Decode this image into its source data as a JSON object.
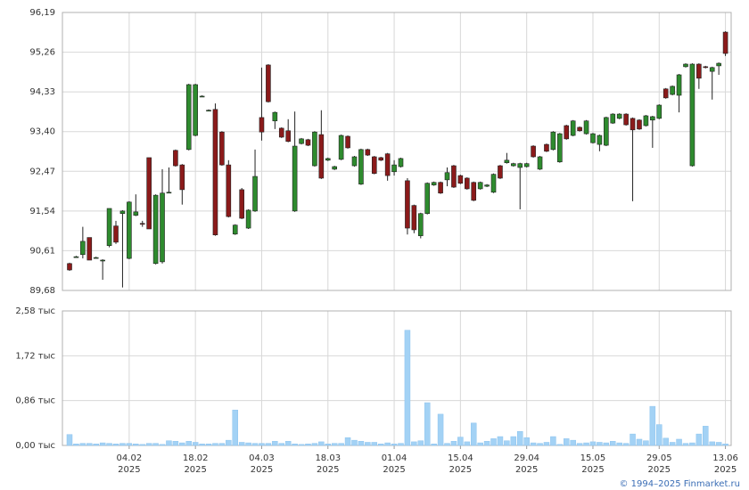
{
  "chart_data": {
    "type": "candlestick",
    "source": "© 1994–2025 Finmarket.ru",
    "up_color": "#2e8b2e",
    "down_color": "#8b1a1a",
    "volume_color": "#a3d2f5",
    "x": [
      "2025-01-22",
      "2025-01-23",
      "2025-01-24",
      "2025-01-27",
      "2025-01-28",
      "2025-01-29",
      "2025-01-30",
      "2025-01-31",
      "2025-02-03",
      "2025-02-04",
      "2025-02-05",
      "2025-02-06",
      "2025-02-07",
      "2025-02-10",
      "2025-02-11",
      "2025-02-12",
      "2025-02-13",
      "2025-02-14",
      "2025-02-17",
      "2025-02-18",
      "2025-02-19",
      "2025-02-20",
      "2025-02-21",
      "2025-02-24",
      "2025-02-25",
      "2025-02-26",
      "2025-02-27",
      "2025-02-28",
      "2025-03-03",
      "2025-03-04",
      "2025-03-05",
      "2025-03-06",
      "2025-03-07",
      "2025-03-10",
      "2025-03-11",
      "2025-03-12",
      "2025-03-13",
      "2025-03-14",
      "2025-03-17",
      "2025-03-18",
      "2025-03-19",
      "2025-03-20",
      "2025-03-21",
      "2025-03-24",
      "2025-03-25",
      "2025-03-26",
      "2025-03-27",
      "2025-03-28",
      "2025-03-31",
      "2025-04-01",
      "2025-04-02",
      "2025-04-03",
      "2025-04-04",
      "2025-04-07",
      "2025-04-08",
      "2025-04-09",
      "2025-04-10",
      "2025-04-11",
      "2025-04-14",
      "2025-04-15",
      "2025-04-16",
      "2025-04-17",
      "2025-04-18",
      "2025-04-21",
      "2025-04-22",
      "2025-04-23",
      "2025-04-24",
      "2025-04-25",
      "2025-04-28",
      "2025-04-29",
      "2025-04-30",
      "2025-05-02",
      "2025-05-05",
      "2025-05-06",
      "2025-05-07",
      "2025-05-08",
      "2025-05-12",
      "2025-05-13",
      "2025-05-14",
      "2025-05-15",
      "2025-05-16",
      "2025-05-19",
      "2025-05-20",
      "2025-05-21",
      "2025-05-22",
      "2025-05-23",
      "2025-05-26",
      "2025-05-27",
      "2025-05-28",
      "2025-05-29",
      "2025-05-30",
      "2025-06-02",
      "2025-06-03",
      "2025-06-04",
      "2025-06-05",
      "2025-06-06",
      "2025-06-09",
      "2025-06-10",
      "2025-06-11",
      "2025-06-13"
    ],
    "open": [
      90.31,
      90.47,
      90.52,
      90.92,
      90.45,
      90.39,
      90.73,
      91.19,
      91.48,
      90.43,
      91.44,
      91.25,
      92.79,
      90.31,
      90.35,
      91.98,
      92.96,
      92.62,
      92.98,
      93.31,
      94.23,
      93.9,
      93.92,
      93.39,
      92.62,
      91.0,
      92.04,
      91.14,
      91.54,
      93.73,
      94.96,
      93.65,
      93.48,
      93.42,
      91.54,
      93.12,
      93.21,
      92.6,
      93.33,
      92.73,
      92.52,
      92.75,
      93.29,
      92.6,
      92.17,
      92.98,
      92.81,
      92.79,
      92.88,
      92.46,
      92.58,
      92.25,
      91.67,
      90.96,
      91.48,
      92.15,
      92.21,
      92.27,
      92.6,
      92.37,
      92.31,
      92.21,
      92.06,
      92.12,
      91.98,
      92.6,
      92.67,
      92.6,
      92.56,
      92.58,
      93.06,
      92.52,
      93.1,
      92.98,
      92.69,
      93.54,
      93.31,
      93.5,
      93.35,
      93.14,
      93.1,
      93.08,
      93.6,
      93.71,
      93.81,
      93.71,
      93.67,
      93.54,
      93.67,
      93.71,
      94.4,
      94.27,
      94.25,
      94.92,
      92.6,
      94.98,
      94.92,
      94.81,
      94.94,
      95.73
    ],
    "high": [
      90.33,
      90.49,
      91.17,
      90.92,
      90.47,
      90.41,
      91.6,
      91.31,
      91.56,
      91.77,
      91.93,
      91.31,
      92.79,
      91.93,
      92.52,
      92.56,
      92.98,
      92.64,
      94.52,
      94.52,
      94.25,
      93.92,
      94.06,
      93.41,
      92.73,
      91.23,
      92.08,
      91.58,
      92.98,
      94.9,
      94.98,
      93.87,
      93.5,
      93.69,
      93.87,
      93.25,
      93.23,
      93.41,
      93.9,
      92.79,
      92.6,
      93.33,
      93.31,
      92.83,
      93.0,
      93.0,
      92.83,
      92.81,
      92.9,
      92.73,
      92.79,
      92.31,
      91.69,
      91.5,
      92.21,
      92.23,
      92.23,
      92.56,
      92.62,
      92.39,
      92.33,
      92.23,
      92.23,
      92.17,
      92.42,
      92.62,
      92.9,
      92.67,
      92.67,
      92.67,
      93.08,
      92.83,
      93.12,
      93.41,
      93.37,
      93.56,
      93.67,
      93.52,
      93.67,
      93.37,
      93.33,
      93.75,
      93.83,
      93.83,
      93.83,
      93.73,
      93.69,
      93.79,
      93.77,
      94.04,
      94.42,
      94.48,
      94.75,
      95.0,
      95.0,
      95.0,
      94.94,
      94.92,
      95.02,
      95.75
    ],
    "low": [
      90.14,
      90.45,
      90.43,
      90.39,
      90.43,
      89.93,
      90.69,
      90.77,
      89.75,
      90.41,
      91.42,
      91.17,
      91.12,
      90.29,
      90.31,
      91.96,
      92.58,
      91.69,
      92.96,
      93.29,
      94.21,
      93.88,
      90.96,
      92.6,
      91.39,
      90.98,
      91.35,
      91.12,
      91.52,
      93.19,
      94.08,
      93.46,
      93.25,
      93.15,
      91.52,
      93.1,
      93.06,
      92.58,
      92.29,
      92.71,
      92.5,
      92.73,
      93.0,
      92.58,
      92.15,
      92.83,
      92.4,
      92.71,
      92.25,
      92.37,
      92.56,
      90.99,
      91.02,
      90.9,
      91.46,
      92.13,
      91.94,
      92.12,
      92.08,
      92.17,
      92.04,
      91.77,
      92.04,
      92.1,
      91.96,
      92.29,
      92.65,
      92.58,
      91.58,
      92.56,
      92.79,
      92.5,
      92.92,
      92.96,
      92.67,
      93.21,
      93.29,
      93.4,
      93.33,
      93.12,
      92.94,
      93.06,
      93.58,
      93.69,
      93.54,
      91.77,
      93.44,
      93.52,
      93.02,
      93.69,
      94.17,
      94.25,
      93.85,
      94.9,
      92.58,
      94.4,
      94.88,
      94.15,
      94.73,
      95.17
    ],
    "close": [
      90.16,
      90.47,
      90.83,
      90.39,
      90.45,
      90.39,
      91.6,
      90.81,
      91.54,
      91.75,
      91.52,
      91.23,
      91.12,
      91.91,
      91.96,
      91.98,
      92.6,
      92.04,
      94.5,
      94.5,
      94.23,
      93.9,
      90.98,
      92.62,
      91.41,
      91.21,
      91.37,
      91.56,
      92.35,
      93.39,
      94.1,
      93.85,
      93.27,
      93.17,
      93.06,
      93.23,
      93.08,
      93.39,
      92.31,
      92.77,
      92.58,
      93.31,
      93.02,
      92.81,
      92.98,
      92.85,
      92.42,
      92.73,
      92.37,
      92.62,
      92.77,
      91.14,
      91.1,
      91.48,
      92.19,
      92.21,
      91.96,
      92.44,
      92.1,
      92.19,
      92.06,
      91.79,
      92.21,
      92.15,
      92.4,
      92.31,
      92.73,
      92.65,
      92.65,
      92.65,
      92.81,
      92.81,
      92.94,
      93.39,
      93.35,
      93.23,
      93.65,
      93.42,
      93.65,
      93.35,
      93.31,
      93.73,
      93.81,
      93.81,
      93.56,
      93.44,
      93.46,
      93.77,
      93.75,
      94.02,
      94.19,
      94.46,
      94.73,
      94.98,
      94.98,
      94.65,
      94.9,
      94.9,
      95.0,
      95.23
    ],
    "volume": [
      0.21,
      0.03,
      0.04,
      0.04,
      0.03,
      0.05,
      0.04,
      0.03,
      0.04,
      0.04,
      0.03,
      0.02,
      0.04,
      0.04,
      0.02,
      0.09,
      0.08,
      0.05,
      0.08,
      0.06,
      0.03,
      0.03,
      0.04,
      0.04,
      0.1,
      0.68,
      0.06,
      0.05,
      0.04,
      0.04,
      0.04,
      0.08,
      0.04,
      0.08,
      0.03,
      0.02,
      0.03,
      0.04,
      0.07,
      0.03,
      0.04,
      0.04,
      0.15,
      0.1,
      0.08,
      0.06,
      0.06,
      0.03,
      0.05,
      0.03,
      0.04,
      2.21,
      0.07,
      0.09,
      0.82,
      0.03,
      0.6,
      0.04,
      0.08,
      0.16,
      0.07,
      0.43,
      0.05,
      0.08,
      0.13,
      0.17,
      0.09,
      0.17,
      0.27,
      0.15,
      0.05,
      0.04,
      0.06,
      0.17,
      0.02,
      0.13,
      0.1,
      0.04,
      0.05,
      0.07,
      0.06,
      0.05,
      0.08,
      0.05,
      0.04,
      0.22,
      0.12,
      0.09,
      0.75,
      0.4,
      0.14,
      0.06,
      0.12,
      0.04,
      0.05,
      0.22,
      0.37,
      0.07,
      0.06,
      0.03
    ],
    "ylim": [
      89.68,
      96.19
    ],
    "yticks": [
      {
        "value": 89.68,
        "label": "89,68"
      },
      {
        "value": 90.61,
        "label": "90,61"
      },
      {
        "value": 91.54,
        "label": "91,54"
      },
      {
        "value": 92.47,
        "label": "92,47"
      },
      {
        "value": 93.4,
        "label": "93,40"
      },
      {
        "value": 94.33,
        "label": "94,33"
      },
      {
        "value": 95.26,
        "label": "95,26"
      },
      {
        "value": 96.19,
        "label": "96,19"
      }
    ],
    "volume_ylim": [
      0,
      2.58
    ],
    "volume_yticks": [
      {
        "value": 0,
        "label": "0,00 тыс"
      },
      {
        "value": 0.86,
        "label": "0,86 тыс"
      },
      {
        "value": 1.72,
        "label": "1,72 тыс"
      },
      {
        "value": 2.58,
        "label": "2,58 тыс"
      }
    ],
    "xticks": [
      {
        "value": "2025-02-04",
        "label": "04.02",
        "year": "2025"
      },
      {
        "value": "2025-02-18",
        "label": "18.02",
        "year": "2025"
      },
      {
        "value": "2025-03-04",
        "label": "04.03",
        "year": "2025"
      },
      {
        "value": "2025-03-18",
        "label": "18.03",
        "year": "2025"
      },
      {
        "value": "2025-04-01",
        "label": "01.04",
        "year": "2025"
      },
      {
        "value": "2025-04-15",
        "label": "15.04",
        "year": "2025"
      },
      {
        "value": "2025-04-29",
        "label": "29.04",
        "year": "2025"
      },
      {
        "value": "2025-05-15",
        "label": "15.05",
        "year": "2025"
      },
      {
        "value": "2025-05-29",
        "label": "29.05",
        "year": "2025"
      },
      {
        "value": "2025-06-13",
        "label": "13.06",
        "year": "2025"
      }
    ],
    "grid": true
  }
}
